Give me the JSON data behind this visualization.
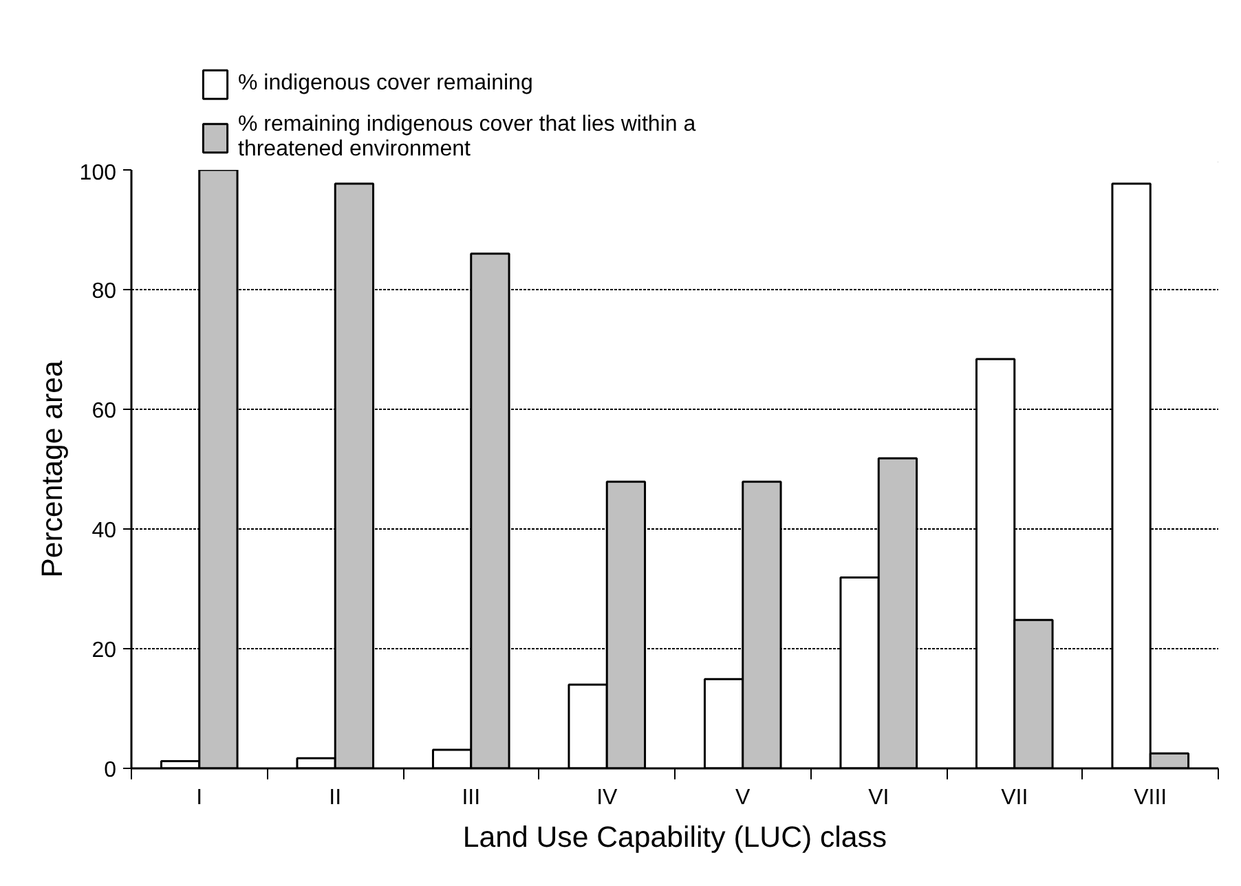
{
  "chart_data": {
    "type": "bar",
    "xlabel": "Land Use Capability (LUC) class",
    "ylabel": "Percentage area",
    "categories": [
      "I",
      "II",
      "III",
      "IV",
      "V",
      "VI",
      "VII",
      "VIII"
    ],
    "series": [
      {
        "name": "% indigenous cover remaining",
        "color": "#ffffff",
        "values": [
          1.2,
          1.7,
          3.1,
          14.0,
          14.9,
          31.9,
          68.4,
          97.7
        ]
      },
      {
        "name": "% remaining indigenous cover that lies within a threatened environment",
        "color": "#c0c0c0",
        "values": [
          100,
          97.7,
          86.0,
          47.9,
          47.9,
          51.8,
          24.8,
          2.5
        ]
      }
    ],
    "ylim": [
      0,
      100
    ],
    "yticks": [
      0,
      20,
      40,
      60,
      80,
      100
    ],
    "grid": "y",
    "legend": "top"
  }
}
